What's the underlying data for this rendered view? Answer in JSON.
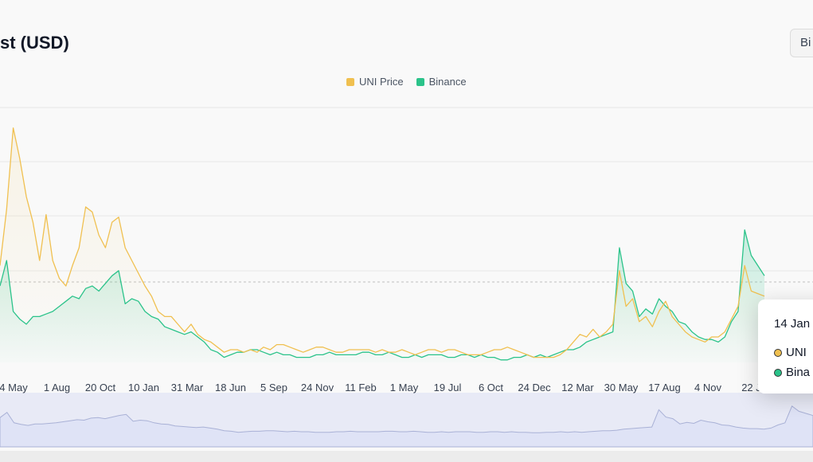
{
  "header": {
    "title": "st (USD)",
    "exchange_button_label": "Bi"
  },
  "colors": {
    "uni": "#f0c050",
    "binance": "#2bc38a",
    "navigator_fill": "#dfe3f6",
    "navigator_line": "#a9b1d6",
    "grid": "#e8e8e8",
    "crosshair": "#c0c0c0"
  },
  "tooltip": {
    "date": "14 Jan",
    "uni_label": "UNI",
    "binance_label": "Bina"
  },
  "chart_data": {
    "type": "line",
    "title": "",
    "legend": [
      "UNI Price",
      "Binance"
    ],
    "legend_position": "top-center",
    "grid": true,
    "x_tick_labels": [
      "4 May",
      "1 Aug",
      "20 Oct",
      "10 Jan",
      "31 Mar",
      "18 Jun",
      "5 Sep",
      "24 Nov",
      "11 Feb",
      "1 May",
      "19 Jul",
      "6 Oct",
      "24 Dec",
      "12 Mar",
      "30 May",
      "17 Aug",
      "4 Nov",
      "22 J"
    ],
    "ylim": [
      0,
      100
    ],
    "series": [
      {
        "name": "UNI Price",
        "values": [
          38,
          60,
          92,
          80,
          65,
          55,
          40,
          58,
          40,
          33,
          30,
          38,
          45,
          61,
          59,
          50,
          45,
          55,
          57,
          45,
          40,
          35,
          30,
          26,
          20,
          18,
          18,
          15,
          12,
          15,
          11,
          9,
          8,
          6,
          4,
          5,
          5,
          4,
          5,
          4,
          6,
          5,
          7,
          7,
          6,
          5,
          4,
          5,
          6,
          6,
          5,
          4,
          4,
          5,
          5,
          5,
          5,
          4,
          5,
          4,
          4,
          5,
          4,
          3,
          4,
          5,
          5,
          4,
          5,
          5,
          4,
          3,
          3,
          3,
          4,
          5,
          5,
          6,
          5,
          4,
          3,
          2,
          2,
          2,
          2,
          3,
          5,
          8,
          11,
          10,
          13,
          10,
          12,
          15,
          36,
          22,
          25,
          16,
          18,
          14,
          20,
          24,
          18,
          15,
          12,
          10,
          9,
          8,
          10,
          10,
          12,
          17,
          22,
          38,
          28,
          27,
          26
        ]
      },
      {
        "name": "Binance",
        "values": [
          30,
          40,
          20,
          17,
          15,
          18,
          18,
          19,
          20,
          22,
          24,
          26,
          25,
          29,
          30,
          28,
          31,
          34,
          36,
          23,
          25,
          24,
          20,
          18,
          17,
          14,
          13,
          12,
          11,
          12,
          10,
          8,
          5,
          4,
          2,
          3,
          4,
          4,
          5,
          5,
          4,
          3,
          4,
          3,
          3,
          2,
          2,
          2,
          3,
          3,
          4,
          3,
          3,
          3,
          3,
          4,
          4,
          3,
          3,
          4,
          3,
          2,
          2,
          3,
          2,
          3,
          3,
          3,
          2,
          2,
          3,
          3,
          2,
          3,
          2,
          2,
          1,
          1,
          2,
          2,
          3,
          2,
          3,
          2,
          3,
          4,
          5,
          5,
          6,
          8,
          9,
          10,
          11,
          12,
          45,
          31,
          28,
          18,
          21,
          19,
          25,
          22,
          20,
          16,
          15,
          12,
          10,
          9,
          9,
          8,
          10,
          16,
          20,
          52,
          42,
          38,
          34
        ]
      }
    ]
  }
}
